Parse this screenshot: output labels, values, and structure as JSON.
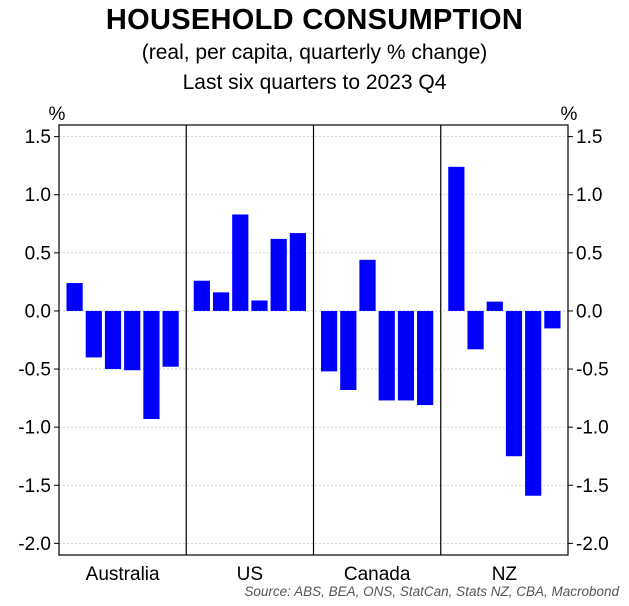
{
  "chart_data": {
    "type": "bar",
    "title": "HOUSEHOLD CONSUMPTION",
    "subtitle": "(real, per capita, quarterly % change)",
    "subtitle2": "Last six quarters to 2023 Q4",
    "ylabel_left": "%",
    "ylabel_right": "%",
    "ylim": [
      -2.1,
      1.6
    ],
    "yticks": [
      1.5,
      1.0,
      0.5,
      0.0,
      -0.5,
      -1.0,
      -1.5,
      -2.0
    ],
    "ytick_labels": [
      "1.5",
      "1.0",
      "0.5",
      "0.0",
      "-0.5",
      "-1.0",
      "-1.5",
      "-2.0"
    ],
    "grid": true,
    "bar_color": "#0000ff",
    "groups": [
      {
        "name": "Australia",
        "values": [
          0.24,
          -0.4,
          -0.5,
          -0.51,
          -0.93,
          -0.48
        ]
      },
      {
        "name": "US",
        "values": [
          0.26,
          0.16,
          0.83,
          0.09,
          0.62,
          0.67
        ]
      },
      {
        "name": "Canada",
        "values": [
          -0.52,
          -0.68,
          0.44,
          -0.77,
          -0.77,
          -0.81
        ]
      },
      {
        "name": "NZ",
        "values": [
          1.24,
          -0.33,
          0.08,
          -1.25,
          -1.59,
          -0.15
        ]
      }
    ],
    "source": "Source: ABS, BEA, ONS, StatCan, Stats NZ, CBA, Macrobond"
  }
}
